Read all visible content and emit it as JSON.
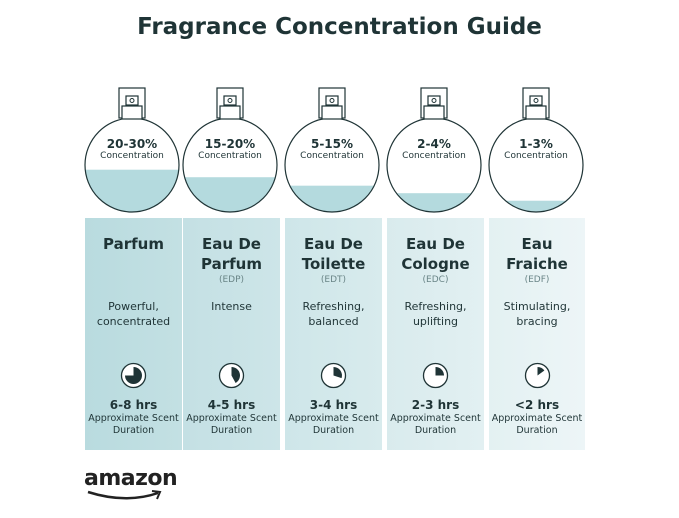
{
  "title": "Fragrance Concentration Guide",
  "colors": {
    "text": "#1f3436",
    "liquid": "#b4dade",
    "panel_start": "#b9dbdf",
    "panel_end": "#eef6f7"
  },
  "types": [
    {
      "concentration": "20-30%",
      "concentration_label": "Concentration",
      "fill_level": 0.45,
      "name": "Parfum",
      "abbr": "",
      "description": "Powerful, concentrated",
      "duration": "6-8 hrs",
      "duration_label": "Approximate Scent Duration",
      "clock_fraction": 0.75
    },
    {
      "concentration": "15-20%",
      "concentration_label": "Concentration",
      "fill_level": 0.37,
      "name": "Eau De Parfum",
      "abbr": "(EDP)",
      "description": "Intense",
      "duration": "4-5 hrs",
      "duration_label": "Approximate Scent Duration",
      "clock_fraction": 0.42
    },
    {
      "concentration": "5-15%",
      "concentration_label": "Concentration",
      "fill_level": 0.28,
      "name": "Eau De Toilette",
      "abbr": "(EDT)",
      "description": "Refreshing, balanced",
      "duration": "3-4 hrs",
      "duration_label": "Approximate Scent Duration",
      "clock_fraction": 0.3
    },
    {
      "concentration": "2-4%",
      "concentration_label": "Concentration",
      "fill_level": 0.2,
      "name": "Eau De Cologne",
      "abbr": "(EDC)",
      "description": "Refreshing, uplifting",
      "duration": "2-3 hrs",
      "duration_label": "Approximate Scent Duration",
      "clock_fraction": 0.25
    },
    {
      "concentration": "1-3%",
      "concentration_label": "Concentration",
      "fill_level": 0.12,
      "name": "Eau Fraiche",
      "abbr": "(EDF)",
      "description": "Stimulating, bracing",
      "duration": "<2 hrs",
      "duration_label": "Approximate Scent Duration",
      "clock_fraction": 0.15
    }
  ],
  "logo": "amazon"
}
